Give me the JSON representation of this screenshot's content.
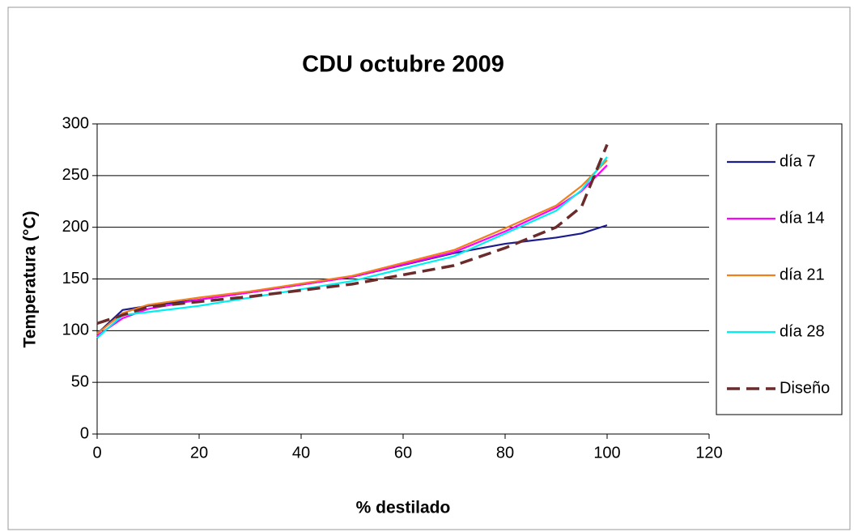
{
  "chart_data": {
    "type": "line",
    "title": "CDU octubre 2009",
    "x_label": "% destilado",
    "y_label": "Temperatura (°C)",
    "x": [
      0,
      5,
      10,
      20,
      30,
      50,
      70,
      80,
      90,
      95,
      100
    ],
    "series": [
      {
        "name": "día 7",
        "color": "#1c1c8c",
        "dashed": false,
        "values": [
          97,
          120,
          124,
          130,
          137,
          152,
          175,
          184,
          190,
          194,
          202
        ]
      },
      {
        "name": "día 14",
        "color": "#ff00ff",
        "dashed": false,
        "values": [
          95,
          112,
          121,
          130,
          137,
          152,
          176,
          196,
          219,
          235,
          260
        ]
      },
      {
        "name": "día 21",
        "color": "#f0801e",
        "dashed": false,
        "values": [
          97,
          117,
          125,
          132,
          138,
          153,
          178,
          199,
          221,
          240,
          265
        ]
      },
      {
        "name": "día 28",
        "color": "#00f0f0",
        "dashed": false,
        "values": [
          93,
          115,
          118,
          124,
          132,
          148,
          172,
          194,
          216,
          236,
          268
        ]
      },
      {
        "name": "Diseño",
        "color": "#6b2b2b",
        "dashed": true,
        "values": [
          107,
          115,
          123,
          128,
          133,
          145,
          163,
          180,
          200,
          220,
          280
        ]
      }
    ],
    "xlim": [
      0,
      120
    ],
    "xticks": [
      0,
      20,
      40,
      60,
      80,
      100,
      120
    ],
    "ylim": [
      0,
      300
    ],
    "yticks": [
      0,
      50,
      100,
      150,
      200,
      250,
      300
    ],
    "grid": true,
    "legend": "right"
  }
}
